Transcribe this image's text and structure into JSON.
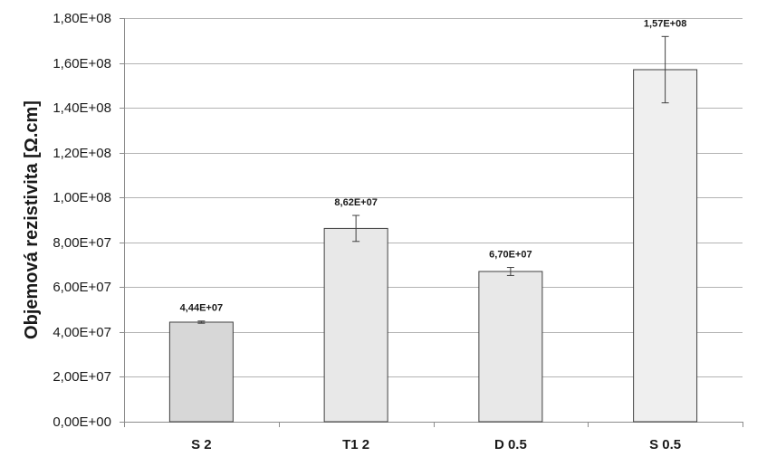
{
  "chart_data": {
    "type": "bar",
    "title": "",
    "xlabel": "",
    "ylabel": "Objemová rezistivita [Ω.cm]",
    "ylim": [
      0,
      180000000
    ],
    "grid": true,
    "yticks": [
      0,
      20000000,
      40000000,
      60000000,
      80000000,
      100000000,
      120000000,
      140000000,
      160000000,
      180000000
    ],
    "ytick_labels": [
      "0,00E+00",
      "2,00E+07",
      "4,00E+07",
      "6,00E+07",
      "8,00E+07",
      "1,00E+08",
      "1,20E+08",
      "1,40E+08",
      "1,60E+08",
      "1,80E+08"
    ],
    "categories": [
      "S 2",
      "T1 2",
      "D 0.5",
      "S 0.5"
    ],
    "values": [
      44400000,
      86200000,
      67000000,
      157000000
    ],
    "error": [
      500000,
      5800000,
      1800000,
      14800000
    ],
    "data_labels": [
      "4,44E+07",
      "8,62E+07",
      "6,70E+07",
      "1,57E+08"
    ],
    "colors": {
      "bars": [
        "#d7d7d7",
        "#e8e8e8",
        "#e8e8e8",
        "#efefef"
      ],
      "bar_edge": "#404040",
      "grid": "#b3b3b3",
      "axis": "#8c8c8c",
      "error": "#404040"
    }
  }
}
